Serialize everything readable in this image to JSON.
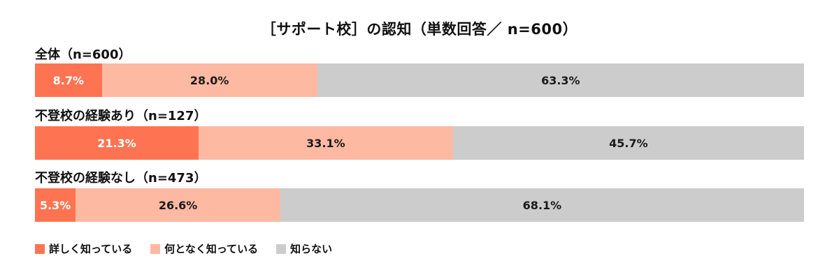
{
  "chart_data": {
    "type": "bar",
    "orientation": "horizontal",
    "stacked": "100%",
    "title": "［サポート校］の認知（単数回答／ n=600）",
    "categories": [
      "全体（n=600）",
      "不登校の経験あり（n=127）",
      "不登校の経験なし（n=473）"
    ],
    "series": [
      {
        "name": "詳しく知っている",
        "color": "#fe7452",
        "values": [
          8.7,
          21.3,
          5.3
        ]
      },
      {
        "name": "何となく知っている",
        "color": "#feb9a3",
        "values": [
          28.0,
          33.1,
          26.6
        ]
      },
      {
        "name": "知らない",
        "color": "#cccccc",
        "values": [
          63.3,
          45.7,
          68.1
        ]
      }
    ],
    "value_labels": [
      [
        "8.7%",
        "28.0%",
        "63.3%"
      ],
      [
        "21.3%",
        "33.1%",
        "45.7%"
      ],
      [
        "5.3%",
        "26.6%",
        "68.1%"
      ]
    ],
    "legend_position": "bottom-left",
    "grid": false
  }
}
